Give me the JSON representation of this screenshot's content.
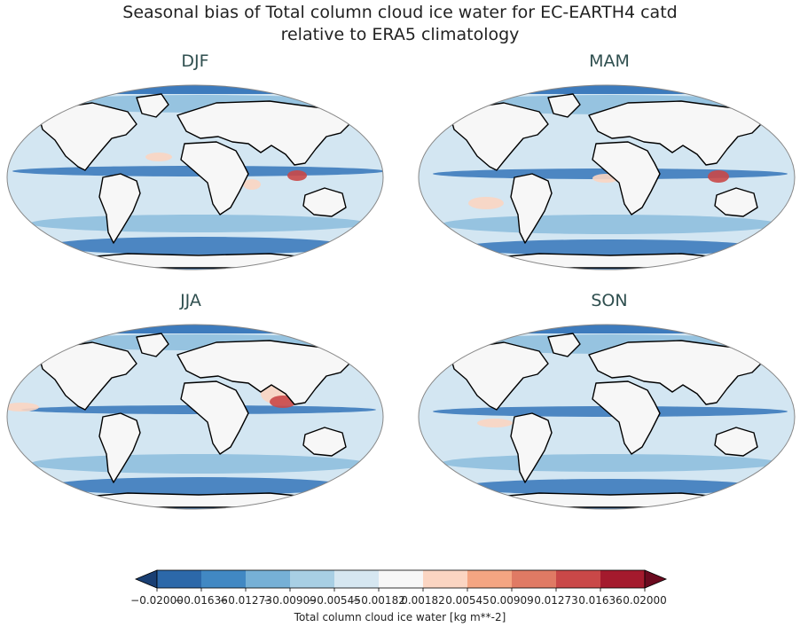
{
  "figure": {
    "title_line1": "Seasonal bias of Total column cloud ice water for EC-EARTH4 catd",
    "title_line2": "relative to ERA5 climatology"
  },
  "panels": [
    {
      "label": "DJF"
    },
    {
      "label": "MAM"
    },
    {
      "label": "JJA"
    },
    {
      "label": "SON"
    }
  ],
  "colorbar": {
    "label": "Total column cloud ice water [kg m**-2]",
    "ticks": [
      "−0.02000",
      "−0.01636",
      "−0.01273",
      "−0.00909",
      "−0.00545",
      "−0.00182",
      "0.00182",
      "0.00545",
      "0.00909",
      "0.01273",
      "0.01636",
      "0.02000"
    ],
    "colors": [
      "#1a3f73",
      "#2c68a9",
      "#4188c3",
      "#76b0d6",
      "#a8cfe4",
      "#d6e7f1",
      "#f7f7f7",
      "#fbd5c2",
      "#f4a582",
      "#e07a64",
      "#c94848",
      "#a41a2d",
      "#6b0a1f"
    ]
  },
  "palette": {
    "ocean_strong_neg": "#3d7bbd",
    "ocean_mid_neg": "#8fbfde",
    "ocean_light_neg": "#d3e6f2",
    "near_zero": "#f7f7f7",
    "pos_light": "#fbd5c2",
    "pos_strong": "#c94848",
    "coast": "#000000"
  }
}
